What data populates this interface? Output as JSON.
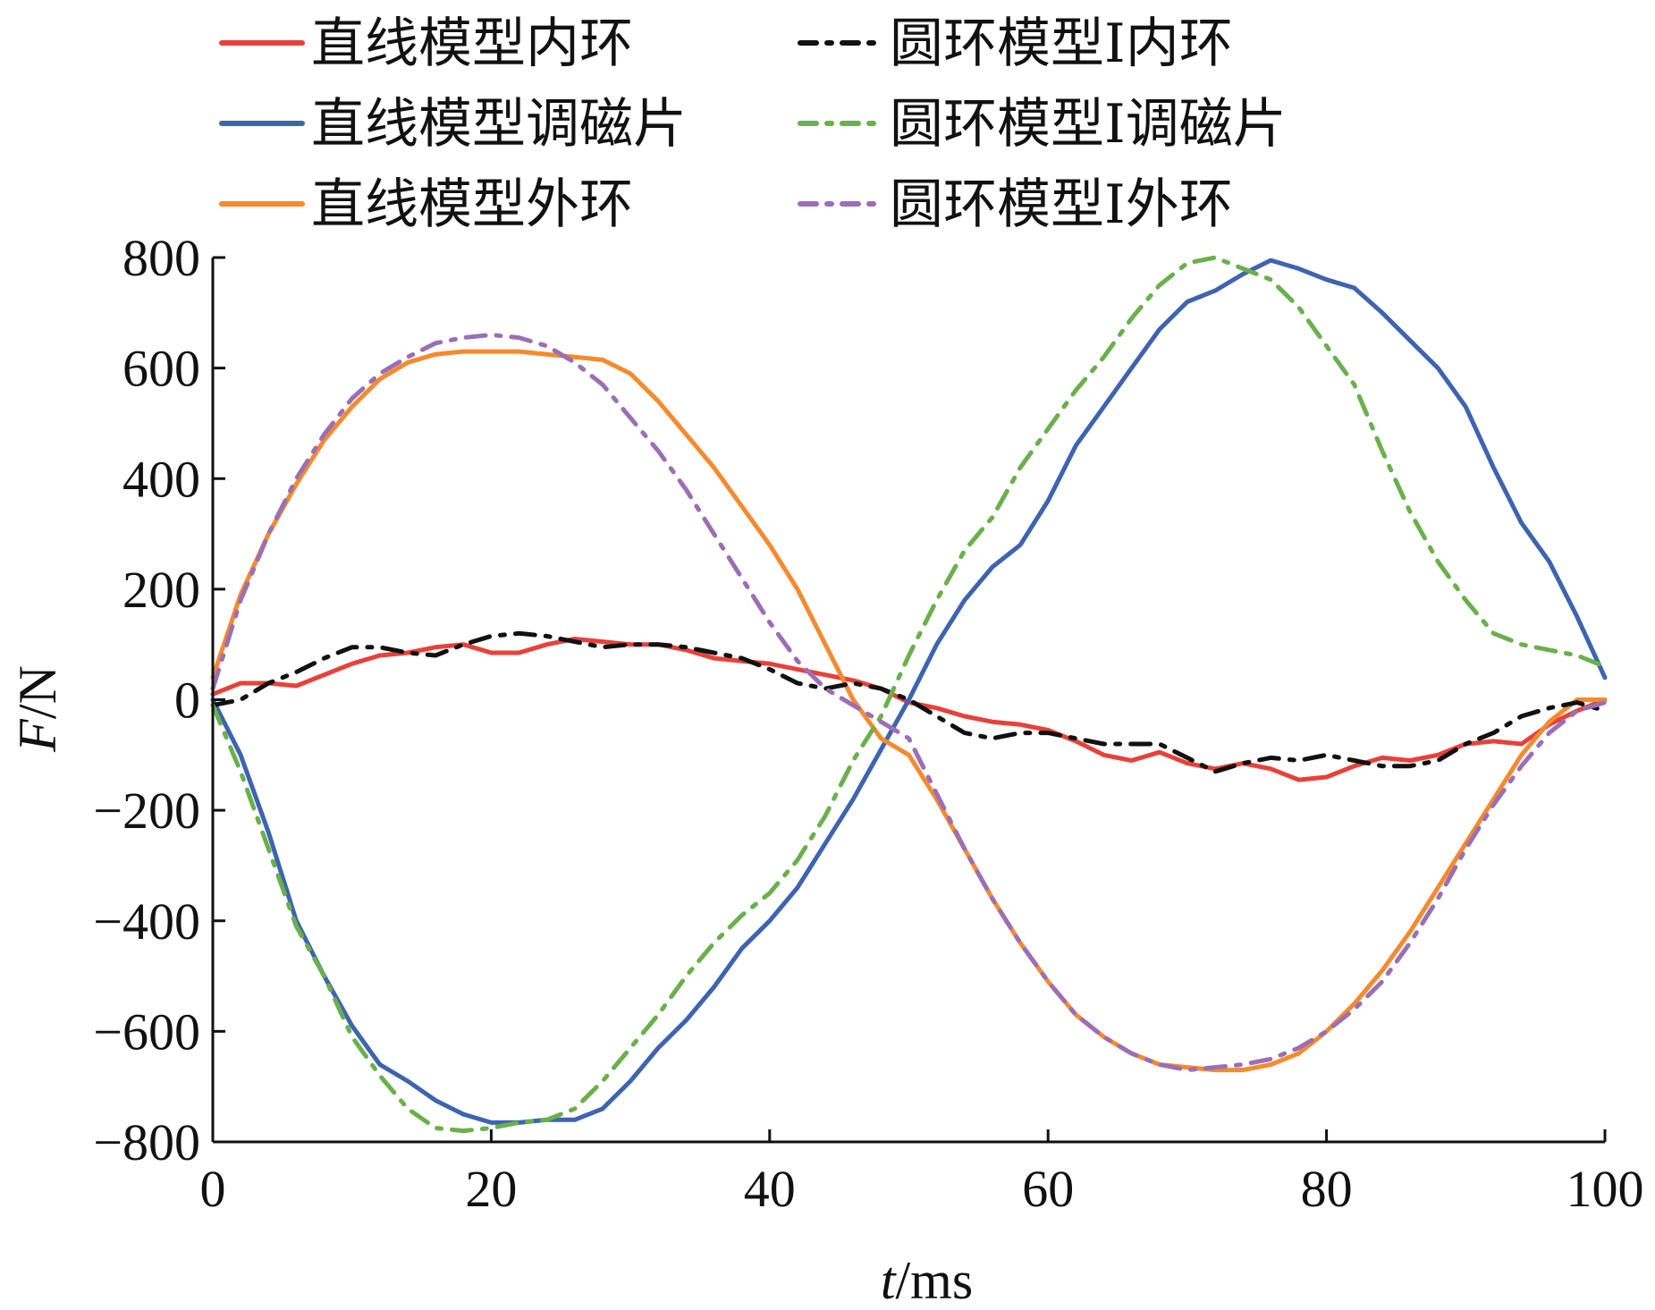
{
  "chart_data": {
    "type": "line",
    "title": "",
    "xlabel": {
      "italic": "t",
      "rest": "/ms"
    },
    "ylabel": {
      "italic": "F",
      "rest": "/N"
    },
    "xlim": [
      0,
      100
    ],
    "ylim": [
      -800,
      800
    ],
    "x_ticks": [
      "0",
      "20",
      "40",
      "60",
      "80",
      "100"
    ],
    "y_ticks": [
      "800",
      "600",
      "400",
      "200",
      "0",
      "−200",
      "−400",
      "−600",
      "−800"
    ],
    "grid": false,
    "legend_position": "top",
    "series": [
      {
        "name": "直线模型内环",
        "color": "#e8413a",
        "style": "solid",
        "x": [
          0,
          2,
          4,
          6,
          8,
          10,
          12,
          14,
          16,
          18,
          20,
          22,
          24,
          26,
          28,
          30,
          32,
          34,
          36,
          38,
          40,
          42,
          44,
          46,
          48,
          50,
          52,
          54,
          56,
          58,
          60,
          62,
          64,
          66,
          68,
          70,
          72,
          74,
          76,
          78,
          80,
          82,
          84,
          86,
          88,
          90,
          92,
          94,
          96,
          98,
          100
        ],
        "y": [
          10,
          30,
          30,
          25,
          45,
          65,
          80,
          85,
          95,
          100,
          85,
          85,
          100,
          110,
          105,
          100,
          100,
          90,
          75,
          70,
          65,
          55,
          45,
          35,
          20,
          -5,
          -15,
          -30,
          -40,
          -45,
          -55,
          -75,
          -100,
          -110,
          -95,
          -115,
          -125,
          -115,
          -125,
          -145,
          -140,
          -120,
          -105,
          -110,
          -100,
          -80,
          -75,
          -80,
          -45,
          -20,
          0
        ]
      },
      {
        "name": "直线模型调磁片",
        "color": "#3e64b0",
        "style": "solid",
        "x": [
          0,
          2,
          4,
          6,
          8,
          10,
          12,
          14,
          16,
          18,
          20,
          22,
          24,
          26,
          28,
          30,
          32,
          34,
          36,
          38,
          40,
          42,
          44,
          46,
          48,
          50,
          52,
          54,
          56,
          58,
          60,
          62,
          64,
          66,
          68,
          70,
          72,
          74,
          76,
          78,
          80,
          82,
          84,
          86,
          88,
          90,
          92,
          94,
          96,
          98,
          100
        ],
        "y": [
          0,
          -100,
          -240,
          -400,
          -500,
          -590,
          -660,
          -690,
          -725,
          -750,
          -765,
          -765,
          -760,
          -760,
          -740,
          -690,
          -630,
          -580,
          -520,
          -450,
          -400,
          -340,
          -260,
          -180,
          -90,
          0,
          100,
          180,
          240,
          280,
          360,
          460,
          530,
          600,
          670,
          720,
          740,
          770,
          795,
          780,
          760,
          745,
          700,
          650,
          600,
          530,
          420,
          320,
          250,
          150,
          40
        ]
      },
      {
        "name": "直线模型外环",
        "color": "#f58a2e",
        "style": "solid",
        "x": [
          0,
          2,
          4,
          6,
          8,
          10,
          12,
          14,
          16,
          18,
          20,
          22,
          24,
          26,
          28,
          30,
          32,
          34,
          36,
          38,
          40,
          42,
          44,
          46,
          48,
          50,
          52,
          54,
          56,
          58,
          60,
          62,
          64,
          66,
          68,
          70,
          72,
          74,
          76,
          78,
          80,
          82,
          84,
          86,
          88,
          90,
          92,
          94,
          96,
          98,
          100
        ],
        "y": [
          40,
          190,
          300,
          390,
          470,
          530,
          580,
          610,
          625,
          630,
          630,
          630,
          625,
          620,
          615,
          590,
          540,
          480,
          420,
          350,
          280,
          200,
          100,
          0,
          -70,
          -100,
          -180,
          -270,
          -360,
          -440,
          -510,
          -570,
          -610,
          -640,
          -660,
          -665,
          -670,
          -670,
          -660,
          -640,
          -600,
          -550,
          -490,
          -420,
          -340,
          -260,
          -180,
          -100,
          -40,
          0,
          0
        ]
      },
      {
        "name": "圆环模型Ⅰ内环",
        "color": "#111111",
        "style": "dashdot",
        "x": [
          0,
          2,
          4,
          6,
          8,
          10,
          12,
          14,
          16,
          18,
          20,
          22,
          24,
          26,
          28,
          30,
          32,
          34,
          36,
          38,
          40,
          42,
          44,
          46,
          48,
          50,
          52,
          54,
          56,
          58,
          60,
          62,
          64,
          66,
          68,
          70,
          72,
          74,
          76,
          78,
          80,
          82,
          84,
          86,
          88,
          90,
          92,
          94,
          96,
          98,
          100
        ],
        "y": [
          -10,
          0,
          30,
          50,
          75,
          95,
          95,
          85,
          80,
          100,
          115,
          120,
          115,
          105,
          95,
          100,
          100,
          95,
          85,
          75,
          55,
          30,
          20,
          30,
          20,
          0,
          -30,
          -60,
          -70,
          -60,
          -60,
          -70,
          -80,
          -80,
          -80,
          -105,
          -130,
          -115,
          -105,
          -110,
          -100,
          -110,
          -120,
          -120,
          -110,
          -80,
          -60,
          -30,
          -15,
          -5,
          -20
        ]
      },
      {
        "name": "圆环模型Ⅰ调磁片",
        "color": "#6ab04c",
        "style": "dashdot",
        "x": [
          0,
          2,
          4,
          6,
          8,
          10,
          12,
          14,
          16,
          18,
          20,
          22,
          24,
          26,
          28,
          30,
          32,
          34,
          36,
          38,
          40,
          42,
          44,
          46,
          48,
          50,
          52,
          54,
          56,
          58,
          60,
          62,
          64,
          66,
          68,
          70,
          72,
          74,
          76,
          78,
          80,
          82,
          84,
          86,
          88,
          90,
          92,
          94,
          96,
          98,
          100
        ],
        "y": [
          -10,
          -130,
          -270,
          -410,
          -500,
          -610,
          -680,
          -740,
          -775,
          -780,
          -775,
          -765,
          -760,
          -740,
          -690,
          -630,
          -570,
          -500,
          -440,
          -390,
          -350,
          -290,
          -210,
          -110,
          -30,
          80,
          180,
          270,
          330,
          420,
          490,
          560,
          620,
          690,
          750,
          790,
          800,
          780,
          760,
          710,
          640,
          570,
          450,
          340,
          250,
          180,
          120,
          100,
          90,
          80,
          60
        ]
      },
      {
        "name": "圆环模型Ⅰ外环",
        "color": "#9b6fb5",
        "style": "dashdot",
        "x": [
          0,
          2,
          4,
          6,
          8,
          10,
          12,
          14,
          16,
          18,
          20,
          22,
          24,
          26,
          28,
          30,
          32,
          34,
          36,
          38,
          40,
          42,
          44,
          46,
          48,
          50,
          52,
          54,
          56,
          58,
          60,
          62,
          64,
          66,
          68,
          70,
          72,
          74,
          76,
          78,
          80,
          82,
          84,
          86,
          88,
          90,
          92,
          94,
          96,
          98,
          100
        ],
        "y": [
          20,
          180,
          300,
          400,
          480,
          545,
          590,
          620,
          645,
          655,
          660,
          655,
          640,
          610,
          570,
          510,
          450,
          380,
          300,
          220,
          140,
          70,
          20,
          -10,
          -40,
          -70,
          -170,
          -270,
          -360,
          -440,
          -510,
          -570,
          -610,
          -640,
          -660,
          -670,
          -665,
          -660,
          -650,
          -630,
          -600,
          -560,
          -510,
          -440,
          -360,
          -270,
          -190,
          -120,
          -60,
          -20,
          -5
        ]
      }
    ]
  }
}
